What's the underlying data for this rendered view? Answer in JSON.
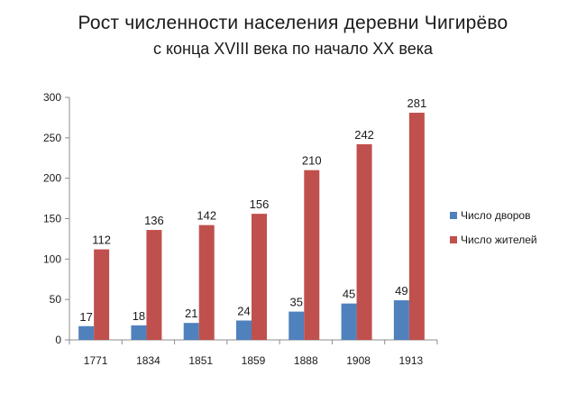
{
  "chart_data": {
    "type": "bar",
    "title": "Рост численности населения деревни Чигирёво",
    "subtitle": "с конца XVIII века по начало XX века",
    "categories": [
      "1771",
      "1834",
      "1851",
      "1859",
      "1888",
      "1908",
      "1913"
    ],
    "series": [
      {
        "name": "Число дворов",
        "color": "#4f81bd",
        "values": [
          17,
          18,
          21,
          24,
          35,
          45,
          49
        ]
      },
      {
        "name": "Число жителей",
        "color": "#c0504d",
        "values": [
          112,
          136,
          142,
          156,
          210,
          242,
          281
        ]
      }
    ],
    "ylim": [
      0,
      300
    ],
    "yticks": [
      0,
      50,
      100,
      150,
      200,
      250,
      300
    ],
    "grid": false,
    "legend": "right"
  }
}
